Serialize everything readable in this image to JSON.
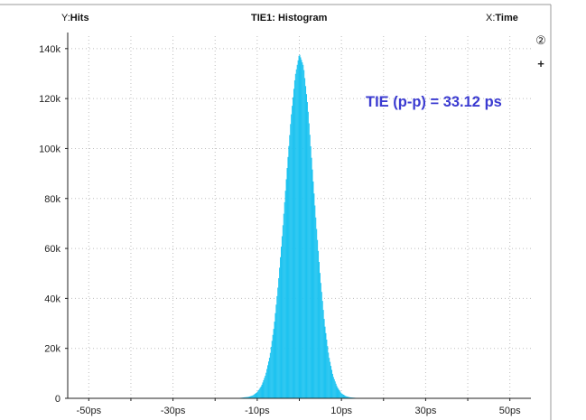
{
  "header": {
    "y_prefix": "Y:",
    "y_label": "Hits",
    "title": "TIE1: Histogram",
    "x_prefix": "X:",
    "x_label": "Time"
  },
  "controls": {
    "zoom_badge": "②",
    "add": "+"
  },
  "annotation": {
    "text": "TIE (p-p) = 33.12 ps",
    "color": "#3b3bd1"
  },
  "colors": {
    "fill": "#1ec3f0",
    "grid": "#bdbdbd",
    "axis": "#222222"
  },
  "chart_data": {
    "type": "area",
    "title": "TIE1: Histogram",
    "xlabel": "Time",
    "ylabel": "Hits",
    "xlim": [
      -55,
      55
    ],
    "ylim": [
      0,
      145000
    ],
    "grid": true,
    "x_ticks": [
      -50,
      -30,
      -10,
      10,
      30,
      50
    ],
    "x_tick_labels": [
      "-50ps",
      "-30ps",
      "-10ps",
      "10ps",
      "30ps",
      "50ps"
    ],
    "y_ticks": [
      0,
      20000,
      40000,
      60000,
      80000,
      100000,
      120000,
      140000
    ],
    "y_tick_labels": [
      "0",
      "20k",
      "40k",
      "60k",
      "80k",
      "100k",
      "120k",
      "140k"
    ],
    "x": [
      -16,
      -14,
      -12,
      -11,
      -10,
      -9,
      -8,
      -7,
      -6,
      -5,
      -4,
      -3,
      -2,
      -1,
      0,
      1,
      2,
      3,
      4,
      5,
      6,
      7,
      8,
      9,
      10,
      11,
      12,
      14,
      16
    ],
    "y": [
      0,
      200,
      600,
      1200,
      2500,
      5000,
      9500,
      17000,
      29000,
      46000,
      67000,
      90000,
      112000,
      129000,
      138000,
      133000,
      117000,
      94000,
      70000,
      48000,
      30000,
      17000,
      9000,
      4500,
      2000,
      900,
      400,
      100,
      0
    ]
  }
}
